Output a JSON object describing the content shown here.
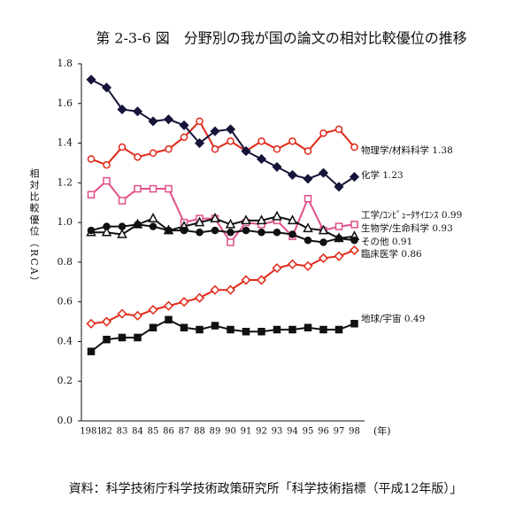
{
  "chart_data": {
    "type": "line",
    "title": "第 2-3-6 図　分野別の我が国の論文の相対比較優位の推移",
    "y_label": "相対比較優位（RCA）",
    "x_unit": "(年)",
    "source": "資料：科学技術庁科学技術政策研究所「科学技術指標（平成12年版）」",
    "categories": [
      "1981",
      "82",
      "83",
      "84",
      "85",
      "86",
      "87",
      "88",
      "89",
      "90",
      "91",
      "92",
      "93",
      "94",
      "95",
      "96",
      "97",
      "98"
    ],
    "ylim": [
      0,
      1.8
    ],
    "yticks": [
      {
        "value": 0,
        "label": "0.0"
      },
      0.2,
      0.4,
      0.6,
      0.8,
      {
        "value": 1,
        "label": "1.0"
      },
      1.2,
      1.4,
      1.6,
      1.8
    ],
    "series": [
      {
        "name": "物理学/材料科学 1.38",
        "color": "#e02818",
        "marker": "circle-open",
        "values": [
          1.32,
          1.29,
          1.38,
          1.33,
          1.35,
          1.37,
          1.43,
          1.51,
          1.37,
          1.41,
          1.36,
          1.41,
          1.37,
          1.41,
          1.36,
          1.45,
          1.47,
          1.38
        ]
      },
      {
        "name": "化学 1.23",
        "color": "#15153a",
        "marker": "diamond-filled",
        "values": [
          1.72,
          1.68,
          1.57,
          1.56,
          1.51,
          1.52,
          1.49,
          1.4,
          1.46,
          1.47,
          1.36,
          1.32,
          1.28,
          1.24,
          1.22,
          1.25,
          1.18,
          1.23
        ]
      },
      {
        "name": "工学/ｺﾝﾋﾟｭｰﾀｻｲｴﾝｽ 0.99",
        "color": "#e0508a",
        "marker": "square-open",
        "values": [
          1.14,
          1.21,
          1.11,
          1.17,
          1.17,
          1.17,
          1.0,
          1.02,
          1.02,
          0.9,
          1.0,
          0.99,
          1.01,
          0.93,
          1.12,
          0.96,
          0.98,
          0.99
        ]
      },
      {
        "name": "生物学/生命科学 0.93",
        "color": "#111111",
        "marker": "triangle-open",
        "values": [
          0.95,
          0.95,
          0.94,
          0.99,
          1.02,
          0.96,
          0.98,
          1.0,
          1.02,
          0.99,
          1.01,
          1.01,
          1.03,
          1.01,
          0.97,
          0.96,
          0.92,
          0.93
        ]
      },
      {
        "name": "その他 0.91",
        "color": "#111111",
        "marker": "circle-filled",
        "values": [
          0.96,
          0.98,
          0.98,
          0.99,
          0.98,
          0.96,
          0.96,
          0.95,
          0.96,
          0.95,
          0.96,
          0.95,
          0.95,
          0.94,
          0.91,
          0.9,
          0.92,
          0.91
        ]
      },
      {
        "name": "臨床医学 0.86",
        "color": "#e02818",
        "marker": "diamond-open",
        "values": [
          0.49,
          0.5,
          0.54,
          0.53,
          0.56,
          0.58,
          0.6,
          0.62,
          0.66,
          0.66,
          0.71,
          0.71,
          0.77,
          0.79,
          0.78,
          0.82,
          0.83,
          0.86
        ]
      },
      {
        "name": "地球/宇宙 0.49",
        "color": "#111111",
        "marker": "square-filled",
        "values": [
          0.35,
          0.41,
          0.42,
          0.42,
          0.47,
          0.51,
          0.47,
          0.46,
          0.48,
          0.46,
          0.45,
          0.45,
          0.46,
          0.46,
          0.47,
          0.46,
          0.46,
          0.49
        ]
      }
    ]
  }
}
